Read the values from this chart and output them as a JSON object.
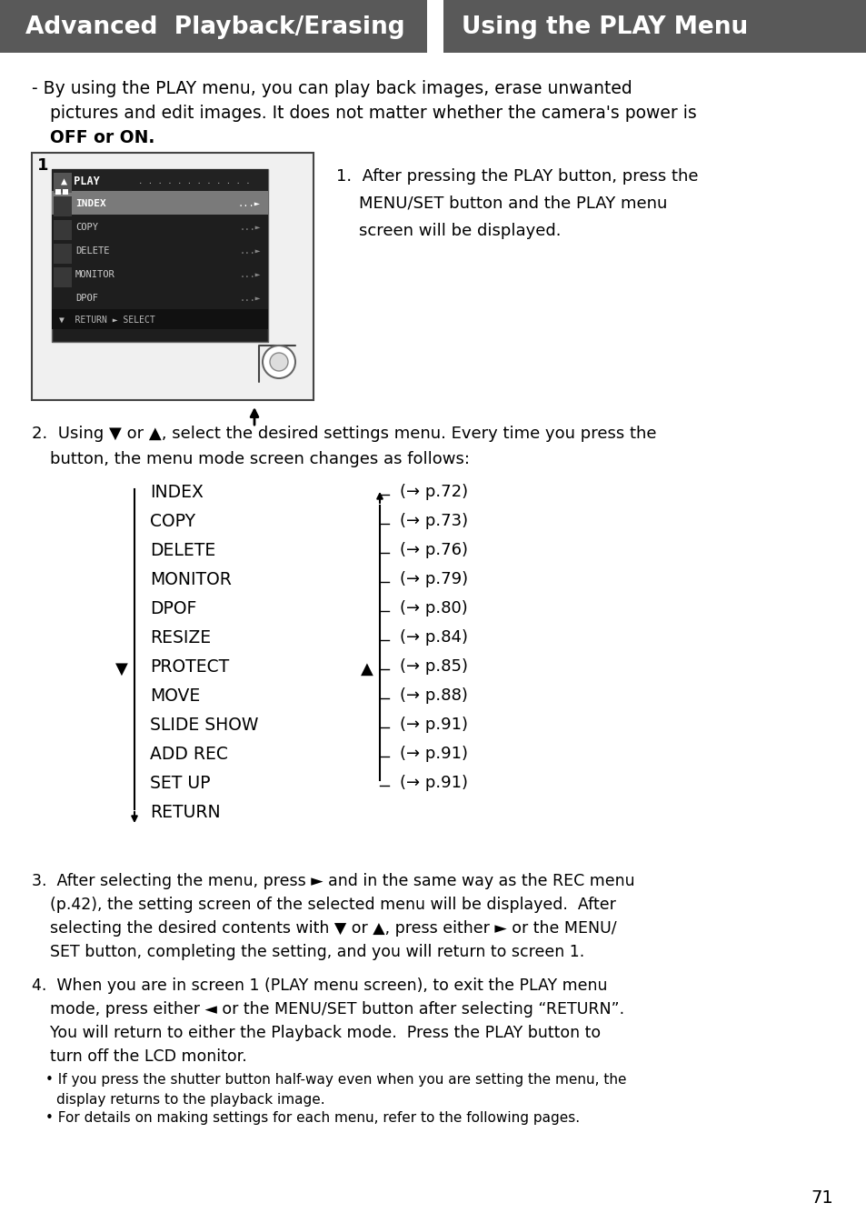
{
  "header_left_text": "Advanced  Playback/Erasing",
  "header_right_text": "Using the PLAY Menu",
  "header_bg_color": "#595959",
  "header_text_color": "#ffffff",
  "page_bg_color": "#ffffff",
  "body_text_color": "#000000",
  "menu_items_left": [
    "INDEX",
    "COPY",
    "DELETE",
    "MONITOR",
    "DPOF",
    "RESIZE",
    "PROTECT",
    "MOVE",
    "SLIDE SHOW",
    "ADD REC",
    "SET UP",
    "RETURN"
  ],
  "menu_items_right": [
    "(→ p.72)",
    "(→ p.73)",
    "(→ p.76)",
    "(→ p.79)",
    "(→ p.80)",
    "(→ p.84)",
    "(→ p.85)",
    "(→ p.88)",
    "(→ p.91)",
    "(→ p.91)",
    "(→ p.91)",
    ""
  ],
  "page_number": "71"
}
